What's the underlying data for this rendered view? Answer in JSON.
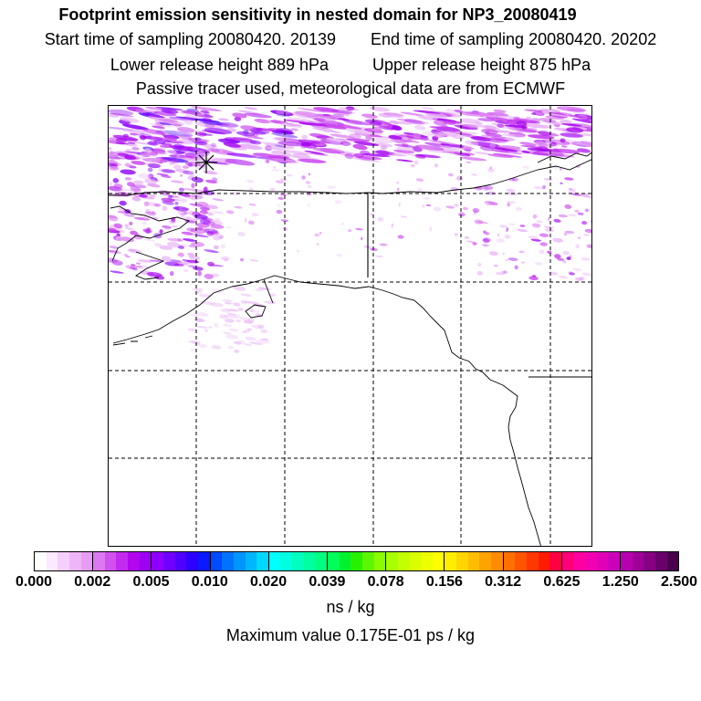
{
  "title": "Footprint emission sensitivity in nested domain for NP3_20080419",
  "sampling": {
    "start": "Start time of sampling 20080420. 20139",
    "end": "End time of sampling 20080420. 20202"
  },
  "release": {
    "lower": "Lower release height  889 hPa",
    "upper": "Upper release height  875 hPa"
  },
  "tracer_note": "Passive tracer used, meteorological data are from ECMWF",
  "colorbar": {
    "ticks": [
      "0.000",
      "0.002",
      "0.005",
      "0.010",
      "0.020",
      "0.039",
      "0.078",
      "0.156",
      "0.312",
      "0.625",
      "1.250",
      "2.500"
    ],
    "groups": [
      [
        "#ffffff",
        "#fbe9ff",
        "#f4d0fb",
        "#eeb6f8",
        "#e89cf5"
      ],
      [
        "#dc78f2",
        "#cf52ef",
        "#c22bee",
        "#b106ee",
        "#9e00f4"
      ],
      [
        "#8d00ff",
        "#6f00ff",
        "#4f00ff",
        "#2e00ff",
        "#0c18ff"
      ],
      [
        "#004aff",
        "#0072ff",
        "#0095ff",
        "#00b6ff",
        "#00d8ff"
      ],
      [
        "#00ffff",
        "#00ffe0",
        "#00ffbf",
        "#00ff9f",
        "#00ff80"
      ],
      [
        "#00ff5a",
        "#00f130",
        "#27f100",
        "#5cf700",
        "#8bfc00"
      ],
      [
        "#a8ff00",
        "#c2ff00",
        "#daff00",
        "#eeff00",
        "#ffff00"
      ],
      [
        "#ffee00",
        "#ffd600",
        "#ffbd00",
        "#ffa300",
        "#ff8c00"
      ],
      [
        "#ff7000",
        "#ff5400",
        "#ff3800",
        "#ff1c00",
        "#ff0040"
      ],
      [
        "#ff0078",
        "#ff00a0",
        "#f000b0",
        "#e000b8",
        "#cc00bb"
      ],
      [
        "#b800b0",
        "#9f0098",
        "#850082",
        "#6a006b",
        "#4a004d"
      ]
    ]
  },
  "unit": "ns / kg",
  "maximum": "Maximum value  0.175E-01 ps / kg",
  "map": {
    "plume_colors": [
      "#e9b8f7",
      "#dc80f2",
      "#c63cef",
      "#a400f0",
      "#8b00ff",
      "#5a20ff"
    ],
    "land_outline_color": "#000000"
  }
}
